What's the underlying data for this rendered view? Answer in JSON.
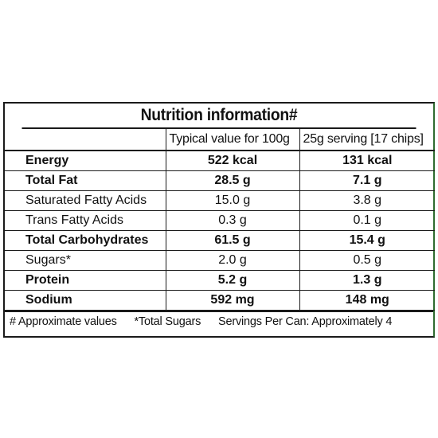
{
  "title": "Nutrition information#",
  "columns": [
    "",
    "Typical value for 100g",
    "25g serving [17 chips]"
  ],
  "rows": [
    {
      "name": "Energy",
      "per100g": "522 kcal",
      "serving": "131 kcal",
      "bold": true
    },
    {
      "name": "Total Fat",
      "per100g": "28.5 g",
      "serving": "7.1 g",
      "bold": true
    },
    {
      "name": "Saturated Fatty Acids",
      "per100g": "15.0 g",
      "serving": "3.8 g",
      "bold": false
    },
    {
      "name": "Trans Fatty Acids",
      "per100g": "0.3 g",
      "serving": "0.1 g",
      "bold": false
    },
    {
      "name": "Total Carbohydrates",
      "per100g": "61.5 g",
      "serving": "15.4 g",
      "bold": true
    },
    {
      "name": "Sugars*",
      "per100g": "2.0 g",
      "serving": "0.5 g",
      "bold": false
    },
    {
      "name": "Protein",
      "per100g": "5.2 g",
      "serving": "1.3 g",
      "bold": true
    },
    {
      "name": "Sodium",
      "per100g": "592 mg",
      "serving": "148 mg",
      "bold": true
    }
  ],
  "footer": {
    "note1": "# Approximate values",
    "note2": "*Total Sugars",
    "note3": "Servings Per Can: Approximately 4"
  },
  "colors": {
    "border": "#1a1a1a",
    "accent_edge": "#2f6b2f"
  }
}
